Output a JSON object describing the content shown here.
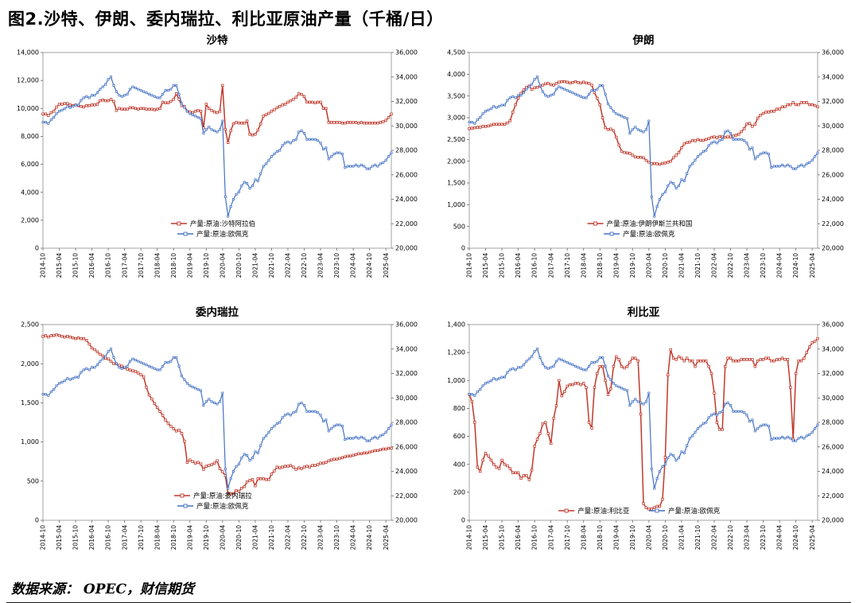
{
  "page": {
    "title": "图2.沙特、伊朗、委内瑞拉、利比亚原油产量（千桶/日）",
    "source": "数据来源：  OPEC，财信期货"
  },
  "chart_data": {
    "type": "line",
    "x_tick_every": 6,
    "points_per_series": 129,
    "x_tick_labels": [
      "2014-10",
      "2015-04",
      "2015-10",
      "2016-04",
      "2016-10",
      "2017-04",
      "2017-10",
      "2018-04",
      "2018-10",
      "2019-04",
      "2019-10",
      "2020-04",
      "2020-10",
      "2021-04",
      "2021-10",
      "2022-04",
      "2022-10",
      "2023-04",
      "2023-10",
      "2024-04",
      "2024-10",
      "2025-04"
    ],
    "shared_series": {
      "opec": [
        30300,
        30300,
        30200,
        30500,
        30700,
        31000,
        31200,
        31300,
        31400,
        31600,
        31500,
        31600,
        31700,
        31700,
        32100,
        32300,
        32400,
        32300,
        32500,
        32500,
        32700,
        33000,
        33200,
        33400,
        33800,
        34000,
        33300,
        32800,
        32500,
        32400,
        32500,
        32600,
        33000,
        33200,
        33100,
        33000,
        32900,
        32800,
        32700,
        32600,
        32500,
        32400,
        32300,
        32300,
        32600,
        32900,
        32900,
        33000,
        33300,
        33300,
        32600,
        31800,
        31500,
        31200,
        31000,
        30900,
        30800,
        30700,
        30600,
        29400,
        29700,
        29900,
        29700,
        29600,
        29500,
        29700,
        30400,
        24200,
        22600,
        23400,
        24000,
        24400,
        24600,
        25100,
        25400,
        25300,
        24900,
        25100,
        25600,
        25500,
        26100,
        26700,
        26900,
        27200,
        27500,
        27700,
        27900,
        28000,
        28400,
        28600,
        28700,
        28600,
        28800,
        28900,
        29500,
        29600,
        29400,
        28900,
        28900,
        28900,
        28900,
        28800,
        28600,
        28100,
        28200,
        27300,
        27500,
        27700,
        27800,
        27800,
        27700,
        26600,
        26700,
        26700,
        26700,
        26800,
        26700,
        26800,
        26700,
        26500,
        26500,
        26700,
        26800,
        26700,
        26900,
        27000,
        27200,
        27500,
        27800
      ]
    },
    "charts": [
      {
        "type": "line",
        "title": "沙特",
        "left_axis": {
          "min": 0,
          "max": 14000,
          "step": 2000
        },
        "right_axis": {
          "min": 20000,
          "max": 36000,
          "step": 2000
        },
        "legend": "vertical",
        "series": [
          {
            "name": "产量:原油:沙特阿拉伯",
            "axis": "left",
            "color": "#c0392b",
            "values": [
              9600,
              9600,
              9500,
              9700,
              9800,
              10100,
              10300,
              10300,
              10350,
              10350,
              10250,
              10200,
              10250,
              10200,
              10150,
              10100,
              10200,
              10200,
              10250,
              10250,
              10300,
              10550,
              10600,
              10550,
              10550,
              10650,
              10500,
              9850,
              10000,
              9950,
              9950,
              9950,
              10050,
              10050,
              10000,
              9950,
              10000,
              10000,
              9950,
              9950,
              9950,
              9900,
              9950,
              10000,
              10450,
              10400,
              10400,
              10500,
              10650,
              11050,
              10650,
              10200,
              10150,
              9800,
              9750,
              9700,
              9800,
              9850,
              9800,
              8600,
              10300,
              10000,
              9850,
              9750,
              9700,
              9800,
              11650,
              8500,
              7550,
              8400,
              8900,
              9000,
              8950,
              8950,
              8950,
              9100,
              8150,
              8100,
              8150,
              8450,
              8900,
              9450,
              9550,
              9650,
              9800,
              9900,
              10050,
              10150,
              10250,
              10300,
              10450,
              10550,
              10650,
              10800,
              11050,
              11000,
              10850,
              10450,
              10450,
              10450,
              10400,
              10450,
              10450,
              10000,
              10000,
              9000,
              9000,
              9000,
              9000,
              9000,
              8950,
              8950,
              9000,
              9000,
              9000,
              9000,
              8950,
              9000,
              8950,
              8950,
              8950,
              8950,
              8950,
              8950,
              9000,
              9050,
              9150,
              9350,
              9600
            ]
          },
          {
            "name": "产量:原油:欧佩克",
            "axis": "right",
            "color": "#4472c4",
            "values_key": "opec"
          }
        ]
      },
      {
        "type": "line",
        "title": "伊朗",
        "left_axis": {
          "min": 0,
          "max": 4500,
          "step": 500
        },
        "right_axis": {
          "min": 20000,
          "max": 36000,
          "step": 2000
        },
        "legend": "vertical",
        "series": [
          {
            "name": "产量:原油:伊朗伊斯兰共和国",
            "axis": "left",
            "color": "#c0392b",
            "values": [
              2750,
              2760,
              2770,
              2780,
              2780,
              2800,
              2800,
              2810,
              2830,
              2850,
              2850,
              2850,
              2850,
              2850,
              2880,
              2930,
              3130,
              3300,
              3450,
              3560,
              3640,
              3700,
              3730,
              3650,
              3690,
              3700,
              3720,
              3750,
              3780,
              3790,
              3760,
              3750,
              3790,
              3820,
              3830,
              3830,
              3820,
              3800,
              3810,
              3830,
              3810,
              3800,
              3820,
              3800,
              3790,
              3750,
              3580,
              3450,
              3300,
              3000,
              2770,
              2730,
              2740,
              2700,
              2550,
              2370,
              2230,
              2200,
              2190,
              2180,
              2140,
              2100,
              2090,
              2090,
              2080,
              2020,
              1980,
              1940,
              1950,
              1940,
              1930,
              1950,
              1960,
              1980,
              2000,
              2080,
              2140,
              2200,
              2310,
              2400,
              2430,
              2440,
              2480,
              2470,
              2500,
              2480,
              2480,
              2500,
              2520,
              2550,
              2560,
              2540,
              2570,
              2560,
              2550,
              2560,
              2560,
              2580,
              2600,
              2620,
              2680,
              2750,
              2860,
              2870,
              2800,
              2850,
              2990,
              3060,
              3100,
              3130,
              3130,
              3150,
              3150,
              3200,
              3200,
              3250,
              3250,
              3300,
              3300,
              3350,
              3300,
              3300,
              3350,
              3350,
              3350,
              3300,
              3300,
              3280,
              3250
            ]
          },
          {
            "name": "产量:原油:欧佩克",
            "axis": "right",
            "color": "#4472c4",
            "values_key": "opec"
          }
        ]
      },
      {
        "type": "line",
        "title": "委内瑞拉",
        "left_axis": {
          "min": 0,
          "max": 2500,
          "step": 500
        },
        "right_axis": {
          "min": 20000,
          "max": 36000,
          "step": 2000
        },
        "legend": "vertical",
        "series": [
          {
            "name": "产量:原油:委内瑞拉",
            "axis": "left",
            "color": "#c0392b",
            "values": [
              2350,
              2360,
              2340,
              2360,
              2360,
              2370,
              2360,
              2350,
              2340,
              2350,
              2340,
              2330,
              2320,
              2330,
              2320,
              2320,
              2300,
              2250,
              2200,
              2180,
              2150,
              2120,
              2100,
              2070,
              2060,
              2030,
              2000,
              2000,
              1980,
              1970,
              1950,
              1930,
              1920,
              1910,
              1900,
              1880,
              1860,
              1830,
              1700,
              1600,
              1550,
              1490,
              1440,
              1390,
              1340,
              1280,
              1240,
              1200,
              1170,
              1140,
              1150,
              1110,
              1010,
              740,
              770,
              750,
              730,
              740,
              720,
              650,
              690,
              700,
              710,
              730,
              760,
              660,
              620,
              570,
              340,
              340,
              340,
              380,
              370,
              410,
              430,
              490,
              510,
              520,
              440,
              530,
              530,
              530,
              520,
              520,
              590,
              630,
              680,
              670,
              680,
              690,
              690,
              700,
              680,
              650,
              670,
              660,
              680,
              690,
              680,
              700,
              700,
              710,
              730,
              730,
              740,
              760,
              770,
              780,
              780,
              790,
              800,
              810,
              820,
              820,
              830,
              840,
              850,
              850,
              860,
              860,
              870,
              880,
              890,
              890,
              900,
              910,
              910,
              920,
              920
            ]
          },
          {
            "name": "产量:原油:欧佩克",
            "axis": "right",
            "color": "#4472c4",
            "values_key": "opec"
          }
        ]
      },
      {
        "type": "line",
        "title": "利比亚",
        "left_axis": {
          "min": 0,
          "max": 1400,
          "step": 200
        },
        "right_axis": {
          "min": 20000,
          "max": 36000,
          "step": 2000
        },
        "legend": "horizontal",
        "series": [
          {
            "name": "产量:原油:利比亚",
            "axis": "left",
            "color": "#c0392b",
            "values": [
              900,
              850,
              700,
              380,
              350,
              430,
              480,
              460,
              430,
              400,
              380,
              370,
              430,
              400,
              390,
              370,
              340,
              340,
              340,
              300,
              320,
              320,
              290,
              360,
              530,
              580,
              620,
              690,
              700,
              620,
              550,
              730,
              820,
              1000,
              890,
              920,
              960,
              970,
              970,
              980,
              980,
              970,
              980,
              950,
              700,
              660,
              950,
              1050,
              1100,
              1100,
              1000,
              900,
              940,
              1100,
              1170,
              1150,
              1100,
              1090,
              1100,
              1130,
              1160,
              1160,
              1140,
              760,
              120,
              90,
              80,
              80,
              90,
              100,
              100,
              150,
              450,
              1040,
              1220,
              1160,
              1150,
              1170,
              1160,
              1140,
              1160,
              1140,
              1140,
              1100,
              1140,
              1140,
              1140,
              1140,
              1100,
              1050,
              910,
              700,
              650,
              650,
              1100,
              1160,
              1160,
              1140,
              1140,
              1140,
              1150,
              1150,
              1150,
              1150,
              1150,
              1100,
              1140,
              1150,
              1150,
              1160,
              1160,
              1140,
              1140,
              1150,
              1150,
              1160,
              1150,
              1150,
              950,
              580,
              1050,
              1140,
              1140,
              1160,
              1200,
              1240,
              1270,
              1280,
              1300
            ]
          },
          {
            "name": "产量:原油:欧佩克",
            "axis": "right",
            "color": "#4472c4",
            "values_key": "opec"
          }
        ]
      }
    ]
  }
}
